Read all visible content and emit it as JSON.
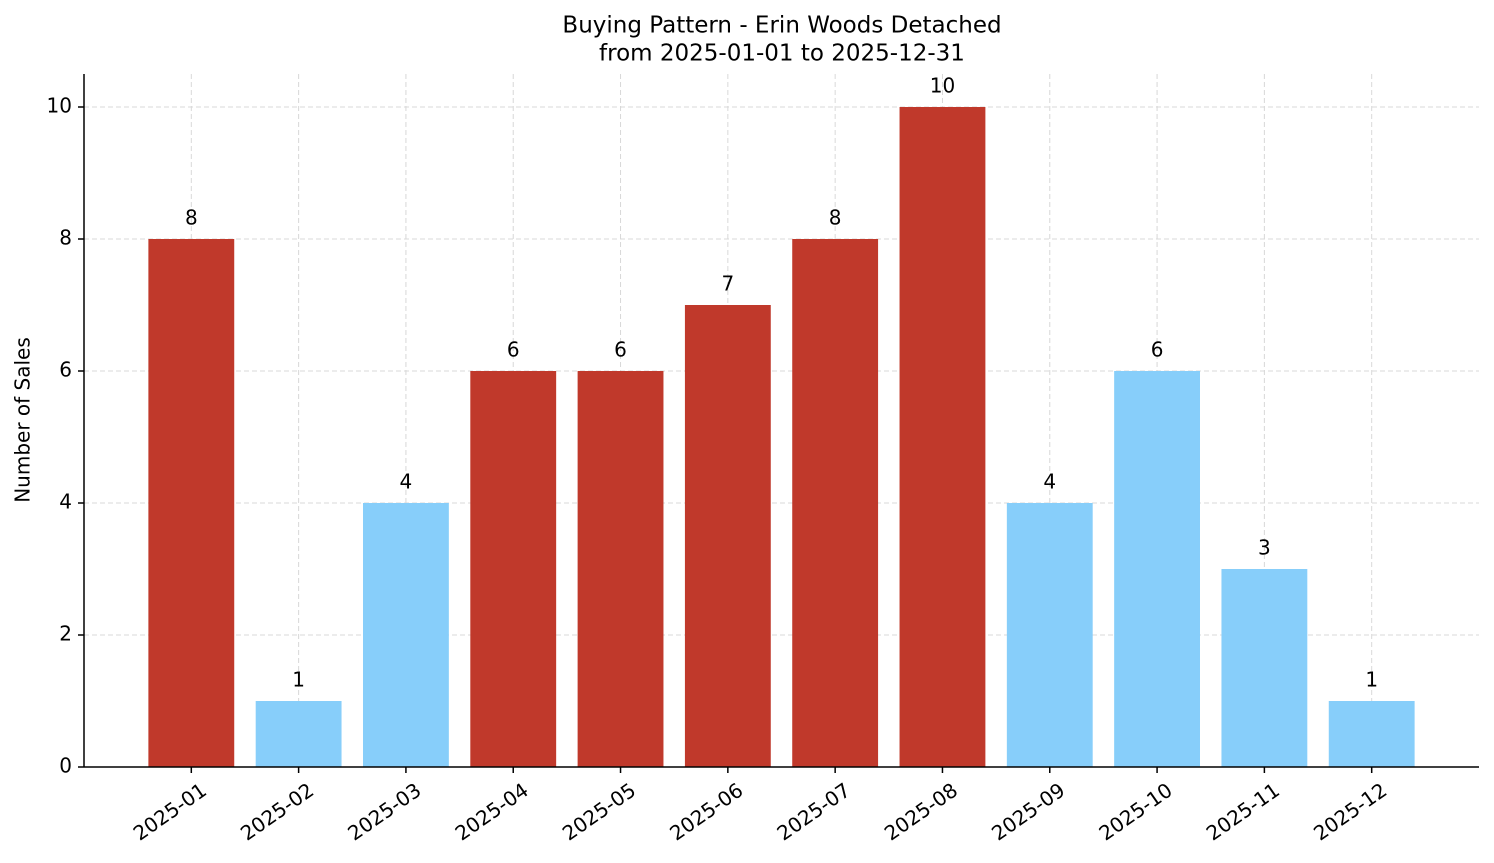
{
  "chart_data": {
    "type": "bar",
    "title": "Buying Pattern - Erin Woods Detached",
    "subtitle": "from 2025-01-01 to 2025-12-31",
    "y_label": "Number of Sales",
    "categories": [
      "2025-01",
      "2025-02",
      "2025-03",
      "2025-04",
      "2025-05",
      "2025-06",
      "2025-07",
      "2025-08",
      "2025-09",
      "2025-10",
      "2025-11",
      "2025-12"
    ],
    "values": [
      8,
      1,
      4,
      6,
      6,
      7,
      8,
      10,
      4,
      6,
      3,
      1
    ],
    "colors": [
      "#c0392b",
      "#87cefa",
      "#87cefa",
      "#c0392b",
      "#c0392b",
      "#c0392b",
      "#c0392b",
      "#c0392b",
      "#87cefa",
      "#87cefa",
      "#87cefa",
      "#87cefa"
    ],
    "ylim": [
      0,
      10.5
    ],
    "yticks": [
      0,
      2,
      4,
      6,
      8,
      10
    ],
    "grid": true
  }
}
